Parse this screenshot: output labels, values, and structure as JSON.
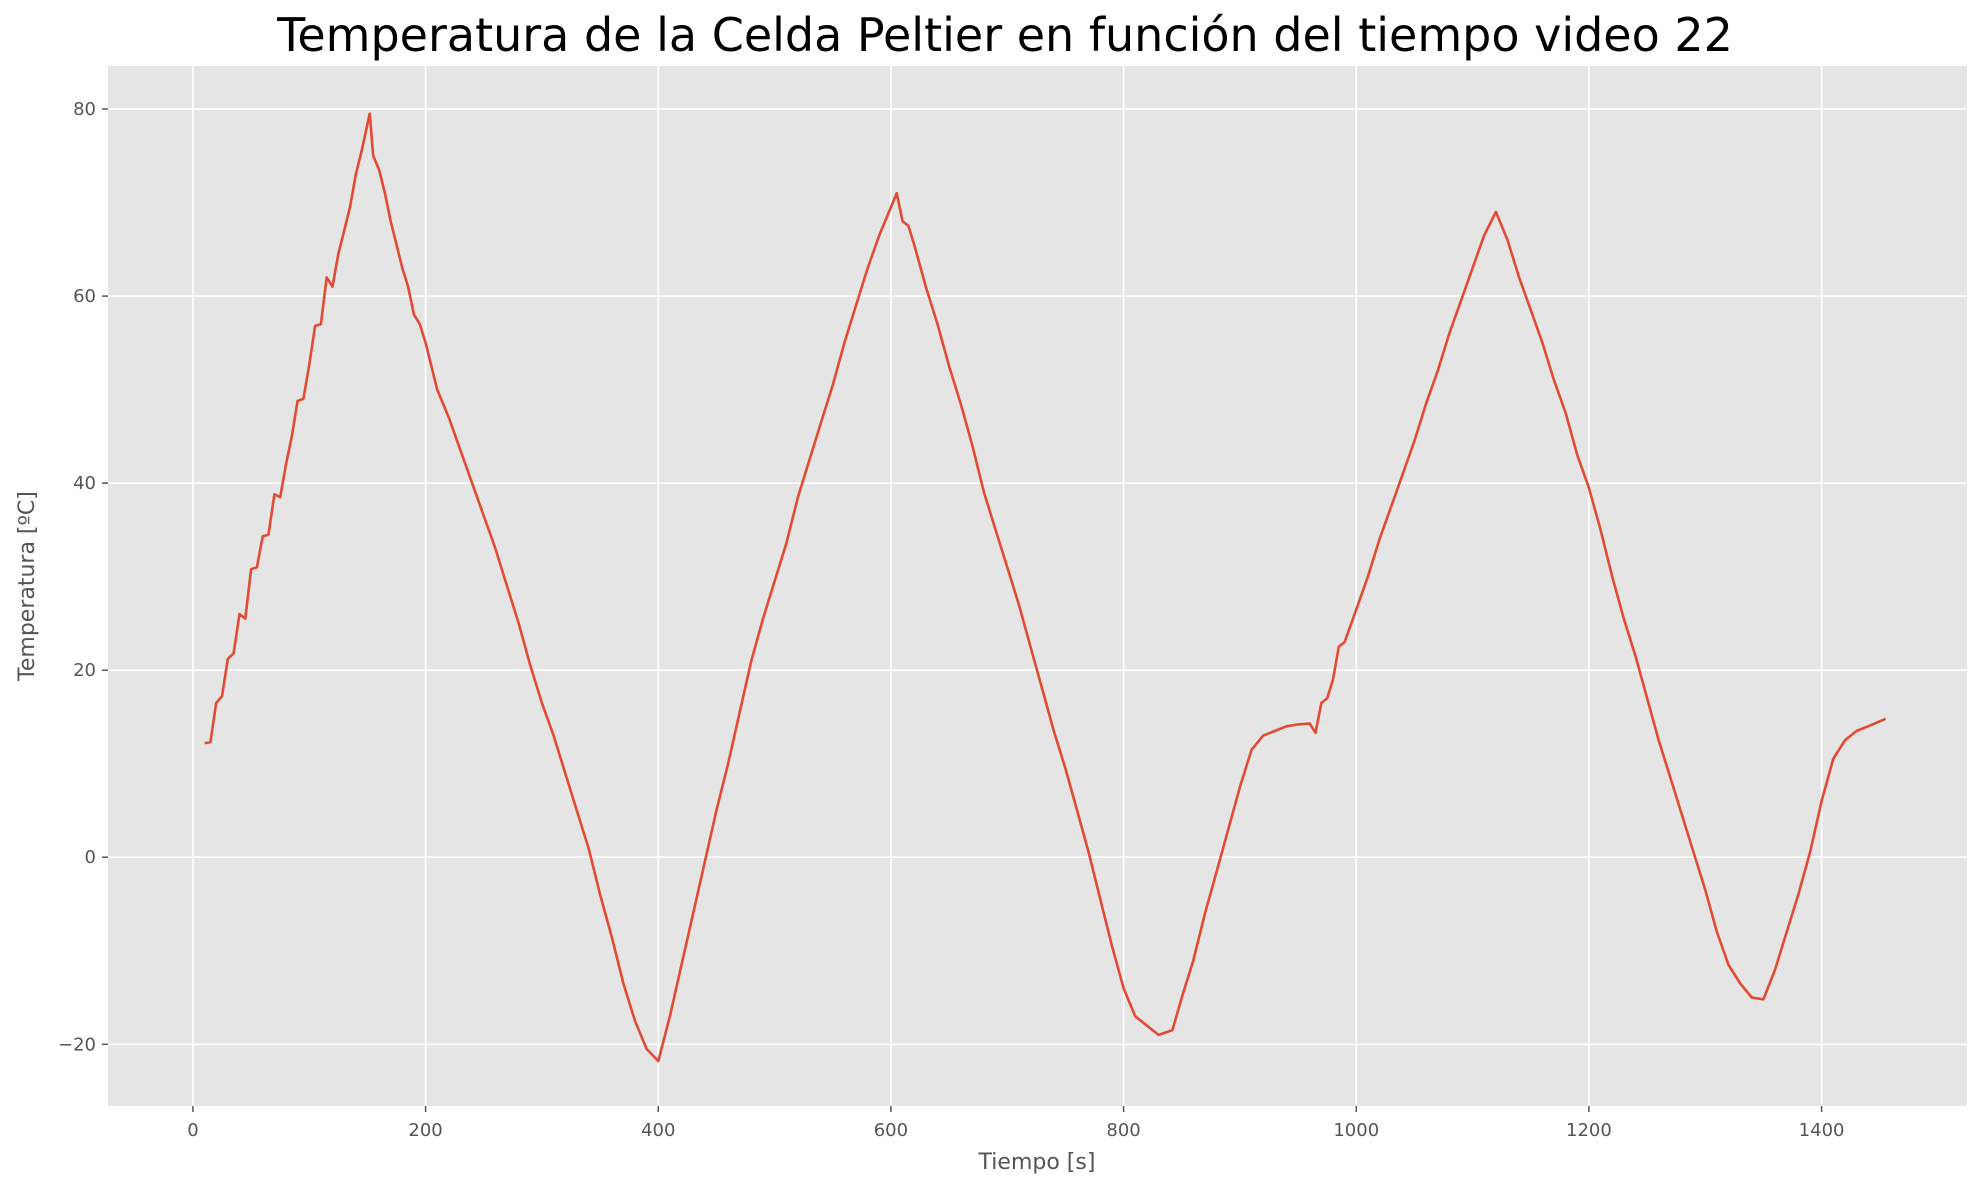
{
  "chart_data": {
    "type": "line",
    "title": "Temperatura de la Celda Peltier en función del tiempo video 22",
    "xlabel": "Tiempo [s]",
    "ylabel": "Temperatura [ºC]",
    "xlim": [
      -73,
      1525
    ],
    "ylim": [
      -26.6,
      84.6
    ],
    "xticks": [
      0,
      200,
      400,
      600,
      800,
      1000,
      1200,
      1400
    ],
    "xtick_labels": [
      "0",
      "200",
      "400",
      "600",
      "800",
      "1000",
      "1200",
      "1400"
    ],
    "yticks": [
      -20,
      0,
      20,
      40,
      60,
      80
    ],
    "ytick_labels": [
      "−20",
      "0",
      "20",
      "40",
      "60",
      "80"
    ],
    "grid": true,
    "style": "ggplot",
    "colors": {
      "background": "#e5e5e5",
      "grid": "#ffffff",
      "line": "#e24a33",
      "tick_text": "#555555"
    },
    "series": [
      {
        "x": [
          10,
          15,
          20,
          25,
          30,
          35,
          40,
          45,
          50,
          55,
          60,
          65,
          70,
          75,
          80,
          85,
          90,
          95,
          100,
          105,
          110,
          115,
          120,
          125,
          130,
          135,
          140,
          145,
          152,
          155,
          160,
          165,
          170,
          175,
          180,
          185,
          190,
          195,
          200,
          210,
          220,
          230,
          240,
          250,
          260,
          270,
          280,
          290,
          300,
          310,
          320,
          330,
          340,
          350,
          360,
          370,
          380,
          390,
          400,
          410,
          420,
          430,
          440,
          450,
          460,
          470,
          480,
          490,
          500,
          510,
          520,
          530,
          540,
          550,
          560,
          570,
          580,
          590,
          600,
          605,
          610,
          615,
          620,
          630,
          640,
          650,
          660,
          670,
          680,
          690,
          700,
          710,
          720,
          730,
          740,
          750,
          760,
          770,
          780,
          790,
          800,
          810,
          820,
          830,
          842,
          850,
          860,
          870,
          880,
          890,
          900,
          910,
          920,
          930,
          940,
          950,
          960,
          965,
          970,
          975,
          980,
          985,
          990,
          1000,
          1010,
          1020,
          1030,
          1040,
          1050,
          1060,
          1070,
          1080,
          1090,
          1100,
          1110,
          1120,
          1130,
          1140,
          1150,
          1160,
          1170,
          1180,
          1190,
          1200,
          1210,
          1220,
          1230,
          1240,
          1250,
          1260,
          1270,
          1280,
          1290,
          1300,
          1310,
          1320,
          1330,
          1340,
          1350,
          1360,
          1370,
          1380,
          1390,
          1400,
          1410,
          1420,
          1430,
          1440,
          1455
        ],
        "y": [
          12.2,
          12.3,
          16.5,
          17.2,
          21.2,
          21.8,
          26.0,
          25.5,
          30.8,
          31.0,
          34.3,
          34.5,
          38.8,
          38.5,
          42.0,
          45.0,
          48.8,
          49.0,
          52.7,
          56.8,
          57.0,
          62.0,
          61.0,
          64.5,
          67.0,
          69.5,
          73.0,
          75.5,
          79.5,
          75.0,
          73.5,
          71.0,
          68.0,
          65.5,
          63.0,
          61.0,
          58.0,
          57.0,
          55.0,
          50.0,
          47.0,
          43.5,
          40.0,
          36.5,
          33.0,
          29.0,
          25.0,
          20.5,
          16.5,
          13.0,
          9.0,
          5.0,
          1.0,
          -4.0,
          -8.5,
          -13.5,
          -17.5,
          -20.5,
          -21.8,
          -17.0,
          -11.5,
          -6.0,
          -0.5,
          5.0,
          10.0,
          15.5,
          21.0,
          25.5,
          29.5,
          33.5,
          38.5,
          42.5,
          46.5,
          50.5,
          55.0,
          59.0,
          63.0,
          66.5,
          69.5,
          71.0,
          68.0,
          67.5,
          65.5,
          61.0,
          57.0,
          52.5,
          48.5,
          44.0,
          39.0,
          35.0,
          31.0,
          27.0,
          22.5,
          18.0,
          13.5,
          9.5,
          5.0,
          0.5,
          -4.5,
          -9.5,
          -14.0,
          -17.0,
          -18.0,
          -19.0,
          -18.5,
          -15.0,
          -11.0,
          -6.0,
          -1.5,
          3.0,
          7.5,
          11.5,
          13.0,
          13.5,
          14.0,
          14.2,
          14.3,
          13.3,
          16.5,
          17.0,
          19.0,
          22.5,
          23.0,
          26.5,
          30.0,
          34.0,
          37.5,
          41.0,
          44.5,
          48.5,
          52.0,
          56.0,
          59.5,
          63.0,
          66.5,
          69.0,
          66.0,
          62.0,
          58.5,
          55.0,
          51.0,
          47.5,
          43.0,
          39.5,
          35.0,
          30.0,
          25.5,
          21.5,
          17.0,
          12.5,
          8.5,
          4.5,
          0.5,
          -3.5,
          -8.0,
          -11.5,
          -13.5,
          -15.0,
          -15.2,
          -12.0,
          -8.0,
          -4.0,
          0.5,
          6.0,
          10.5,
          12.5,
          13.5,
          14.0,
          14.8
        ]
      }
    ]
  }
}
